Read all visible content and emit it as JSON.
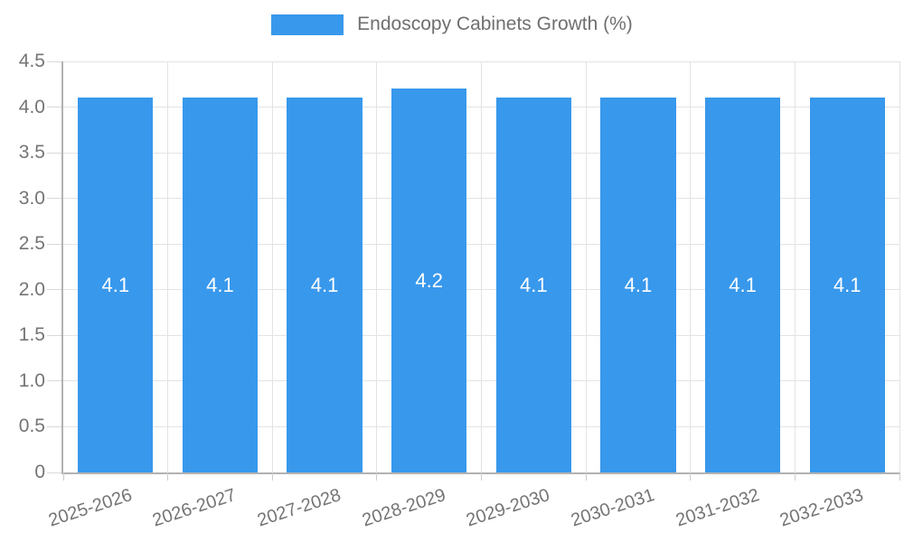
{
  "chart_data": {
    "type": "bar",
    "title": "Endoscopy Cabinets Growth (%)",
    "categories": [
      "2025-2026",
      "2026-2027",
      "2027-2028",
      "2028-2029",
      "2029-2030",
      "2030-2031",
      "2031-2032",
      "2032-2033"
    ],
    "values": [
      4.1,
      4.1,
      4.1,
      4.2,
      4.1,
      4.1,
      4.1,
      4.1
    ],
    "value_labels": [
      "4.1",
      "4.1",
      "4.1",
      "4.2",
      "4.1",
      "4.1",
      "4.1",
      "4.1"
    ],
    "xlabel": "",
    "ylabel": "",
    "ylim": [
      0,
      4.5
    ],
    "ytick_step": 0.5,
    "ytick_labels": [
      "0",
      "0.5",
      "1.0",
      "1.5",
      "2.0",
      "2.5",
      "3.0",
      "3.5",
      "4.0",
      "4.5"
    ],
    "legend_position": "top",
    "grid": true,
    "colors": {
      "bar": "#3898ec",
      "grid": "#e3e3e3",
      "axis": "#b2b2b2",
      "tick": "#cccccc",
      "axis_text": "#757575",
      "legend_text": "#6f6f6f",
      "value_label": "#ffffff",
      "background": "#ffffff"
    }
  }
}
